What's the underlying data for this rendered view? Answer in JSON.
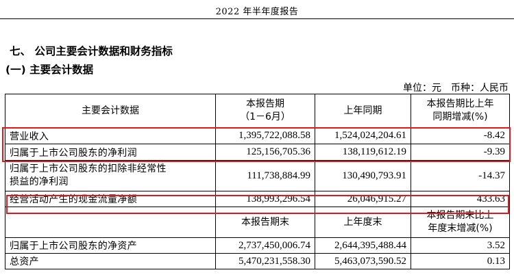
{
  "page_header": "2022 年半年度报告",
  "section_title": "七、  公司主要会计数据和财务指标",
  "subsection_title": "(一) 主要会计数据",
  "unit": {
    "label": "单位：元",
    "currency": "币种：人民币"
  },
  "table": {
    "header1": {
      "item": "主要会计数据",
      "current_line1": "本报告期",
      "current_line2": "（1－6月）",
      "prior": "上年同期",
      "change_line1": "本报告期比上年",
      "change_line2": "同期增减(%)"
    },
    "rows1": [
      {
        "label": "营业收入",
        "current": "1,395,722,088.58",
        "prior": "1,524,024,204.61",
        "change": "-8.42"
      },
      {
        "label": "归属于上市公司股东的净利润",
        "current": "125,156,705.36",
        "prior": "138,119,612.19",
        "change": "-9.39"
      },
      {
        "label_line1": "归属于上市公司股东的扣除非经常性",
        "label_line2": "损益的净利润",
        "current": "111,738,884.99",
        "prior": "130,490,793.91",
        "change": "-14.37"
      },
      {
        "label": "经营活动产生的现金流量净额",
        "current": "138,993,296.54",
        "prior": "26,046,915.27",
        "change": "433.63"
      }
    ],
    "header2": {
      "current": "本报告期末",
      "prior": "上年度末",
      "change_line1": "本报告期末比上",
      "change_line2": "年度末增减(%)"
    },
    "rows2": [
      {
        "label": "归属于上市公司股东的净资产",
        "current": "2,737,450,006.74",
        "prior": "2,644,395,488.44",
        "change": "3.52"
      },
      {
        "label": "总资产",
        "current": "5,470,231,558.30",
        "prior": "5,463,073,590.52",
        "change": "0.13"
      }
    ]
  },
  "highlight_color": "#e8141b"
}
